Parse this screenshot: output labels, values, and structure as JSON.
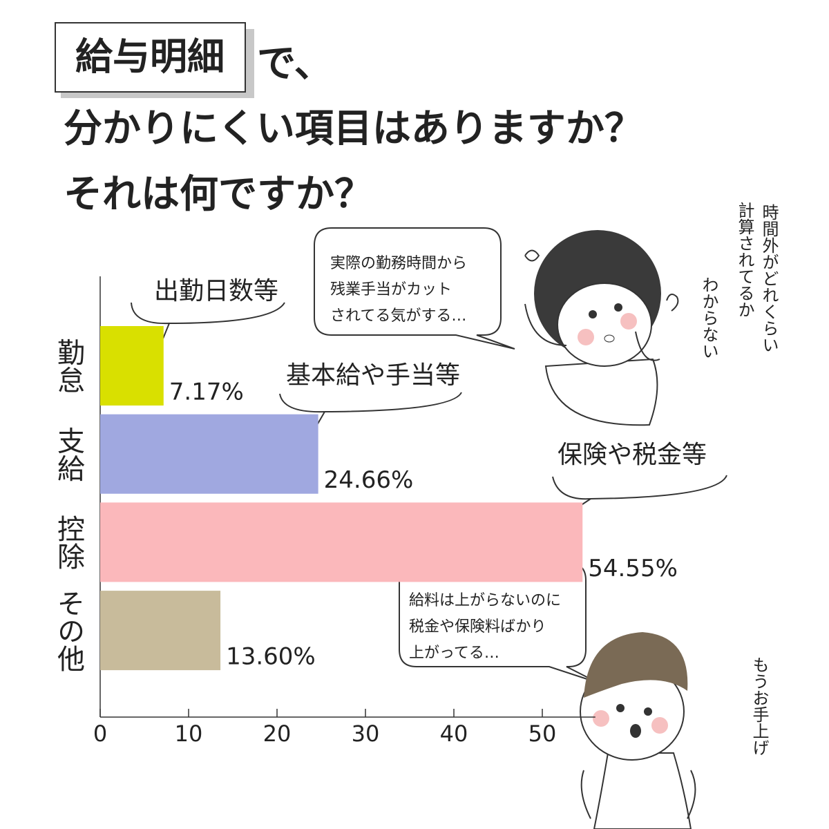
{
  "chart_data": {
    "type": "bar",
    "title_box": "給与明細",
    "title_lines": [
      "で、",
      "分かりにくい項目はありますか？",
      "それは何ですか？"
    ],
    "categories": [
      "勤怠",
      "支給",
      "控除",
      "その他"
    ],
    "values": [
      7.17,
      24.66,
      54.55,
      13.6
    ],
    "value_labels": [
      "7.17%",
      "24.66%",
      "54.55%",
      "13.60%"
    ],
    "colors": [
      "#d9e000",
      "#a0a8e0",
      "#fbb8bb",
      "#c8bb9b"
    ],
    "xlim": [
      0,
      56
    ],
    "xticks": [
      0,
      10,
      20,
      30,
      40,
      50
    ],
    "callouts": [
      "出勤日数等",
      "基本給や手当等",
      "保険や税金等"
    ],
    "speech": [
      [
        "実際の勤務時間から",
        "残業手当がカット",
        "されてる気がする…"
      ],
      [
        "給料は上がらないのに",
        "税金や保険料ばかり",
        "上がってる…"
      ]
    ],
    "thoughts": [
      "時間外がどれくらい",
      "計算されてるか",
      "わからない",
      "もうお手上げ"
    ]
  }
}
